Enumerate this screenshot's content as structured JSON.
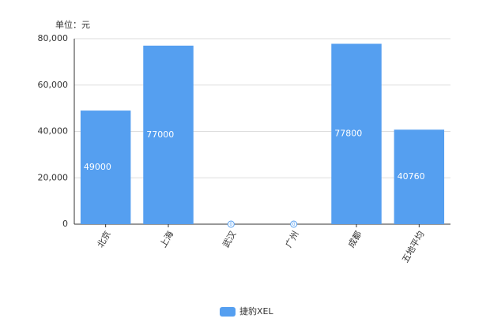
{
  "chart_data": {
    "type": "bar",
    "unit_label": "单位：元",
    "categories": [
      "北京",
      "上海",
      "武汉",
      "广州",
      "成都",
      "五地平均"
    ],
    "series": [
      {
        "name": "捷豹XEL",
        "color": "#559ff0",
        "values": [
          49000,
          77000,
          0,
          0,
          77800,
          40760
        ]
      }
    ],
    "ylim": [
      0,
      80000
    ],
    "yticks": [
      0,
      {
        "value": 20000,
        "label": "20,000"
      },
      {
        "value": 40000,
        "label": "40,000"
      },
      {
        "value": 60000,
        "label": "60,000"
      },
      {
        "value": 80000,
        "label": "80,000"
      }
    ],
    "grid": true,
    "legend": "bottom"
  }
}
